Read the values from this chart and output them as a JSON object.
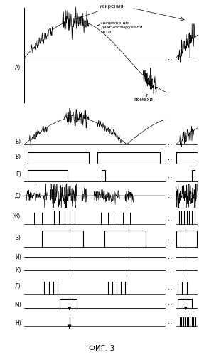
{
  "title": "ФИГ. 3",
  "bg_color": "#ffffff",
  "line_color": "#000000",
  "gray_color": "#777777",
  "label_A": "А)",
  "label_B": "Б)",
  "label_V": "В)",
  "label_G": "Г)",
  "label_D": "Д)",
  "label_Zh": "Ж)",
  "label_Z": "З)",
  "label_I": "И)",
  "label_K": "К)",
  "label_L": "Л)",
  "label_M": "М)",
  "label_N": "Н)",
  "ann_iskr": "искрения",
  "ann_napr": "напряжение\nдиагностируемой\nсети",
  "ann_pom": "помехи"
}
